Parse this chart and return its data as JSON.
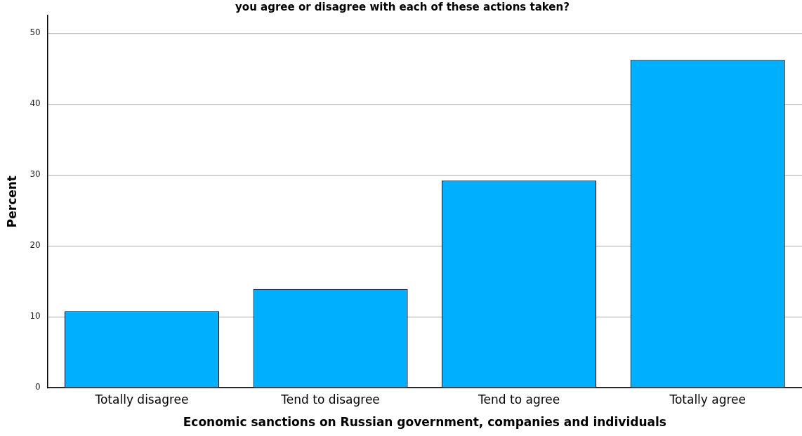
{
  "chart_data": {
    "type": "bar",
    "title": "you agree or disagree with each of these actions taken?",
    "xlabel": "Economic sanctions on Russian government, companies and individuals",
    "ylabel": "Percent",
    "categories": [
      "Totally disagree",
      "Tend to disagree",
      "Tend to agree",
      "Totally agree"
    ],
    "values": [
      10.8,
      13.9,
      29.2,
      46.2
    ],
    "color": "#00b0ff",
    "ylim": [
      0,
      52.5
    ],
    "yticks": [
      0,
      10,
      20,
      30,
      40,
      50
    ],
    "grid": "y",
    "legend": false
  }
}
